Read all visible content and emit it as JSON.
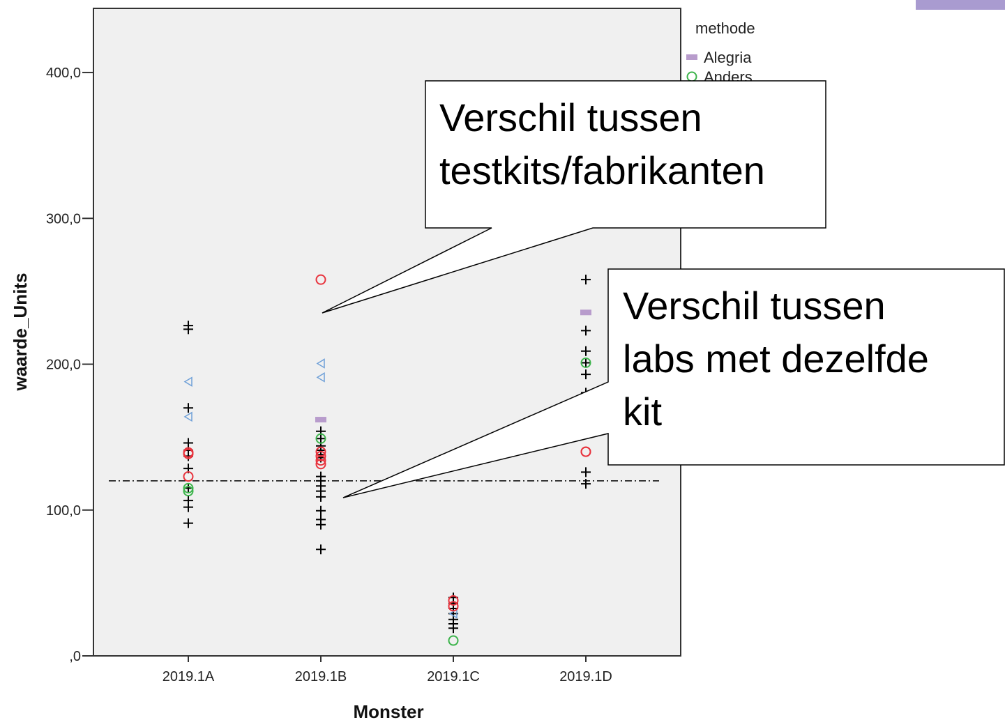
{
  "chart_data": {
    "type": "scatter",
    "x_label": "Monster",
    "y_label": "waarde_Units",
    "categories": [
      "2019.1A",
      "2019.1B",
      "2019.1C",
      "2019.1D"
    ],
    "ylim": [
      0,
      444
    ],
    "yticks": [
      {
        "value": 0,
        "label": ",0"
      },
      {
        "value": 100,
        "label": "100,0"
      },
      {
        "value": 200,
        "label": "200,0"
      },
      {
        "value": 300,
        "label": "300,0"
      },
      {
        "value": 400,
        "label": "400,0"
      }
    ],
    "reference_line": 120,
    "legend_title": "methode",
    "legend_position": "right",
    "series": [
      {
        "marker": "plus",
        "color": "#000000",
        "x": [
          "2019.1A",
          "2019.1A",
          "2019.1A",
          "2019.1A",
          "2019.1A",
          "2019.1A",
          "2019.1A",
          "2019.1A",
          "2019.1A",
          "2019.1A",
          "2019.1A",
          "2019.1B",
          "2019.1B",
          "2019.1B",
          "2019.1B",
          "2019.1B",
          "2019.1B",
          "2019.1B",
          "2019.1B",
          "2019.1B",
          "2019.1B",
          "2019.1B",
          "2019.1B",
          "2019.1B",
          "2019.1B",
          "2019.1B",
          "2019.1C",
          "2019.1C",
          "2019.1C",
          "2019.1C",
          "2019.1C",
          "2019.1C",
          "2019.1C",
          "2019.1D",
          "2019.1D",
          "2019.1D",
          "2019.1D",
          "2019.1D",
          "2019.1D",
          "2019.1D",
          "2019.1D"
        ],
        "values": [
          226.5,
          224,
          170,
          146,
          141,
          137,
          128.5,
          115,
          106.5,
          102,
          91,
          154,
          149,
          144,
          141,
          138,
          136,
          123,
          120,
          116.5,
          113,
          109,
          99.5,
          93.5,
          90,
          73,
          40,
          36,
          32.5,
          29,
          25,
          22,
          19,
          258,
          223,
          209,
          201,
          193,
          180.5,
          126,
          118
        ]
      },
      {
        "marker": "triangle",
        "color": "#6fa0d8",
        "x": [
          "2019.1A",
          "2019.1A",
          "2019.1B",
          "2019.1B",
          "2019.1C"
        ],
        "values": [
          188,
          164,
          200.5,
          191,
          29
        ]
      },
      {
        "name": "Alegria",
        "marker": "rect",
        "color": "#b89ccc",
        "x": [
          "2019.1B",
          "2019.1D"
        ],
        "values": [
          162,
          235.5
        ]
      },
      {
        "name": "Anders",
        "marker": "circle",
        "color": "#3cb44b",
        "x": [
          "2019.1A",
          "2019.1A",
          "2019.1B",
          "2019.1C",
          "2019.1D"
        ],
        "values": [
          115,
          113,
          149,
          10.5,
          201
        ]
      },
      {
        "marker": "circle",
        "color": "#e8323c",
        "x": [
          "2019.1A",
          "2019.1A",
          "2019.1A",
          "2019.1B",
          "2019.1B",
          "2019.1B",
          "2019.1B",
          "2019.1B",
          "2019.1C",
          "2019.1C",
          "2019.1D",
          "2019.1D"
        ],
        "values": [
          139.5,
          138.5,
          123,
          258,
          140,
          137,
          134,
          131.5,
          38,
          34,
          140,
          140
        ]
      }
    ],
    "annotations": [
      {
        "lines": [
          "Verschil tussen",
          "testkits/fabrikanten"
        ]
      },
      {
        "lines": [
          "Verschil tussen",
          "labs met dezelfde",
          "kit"
        ]
      }
    ]
  }
}
